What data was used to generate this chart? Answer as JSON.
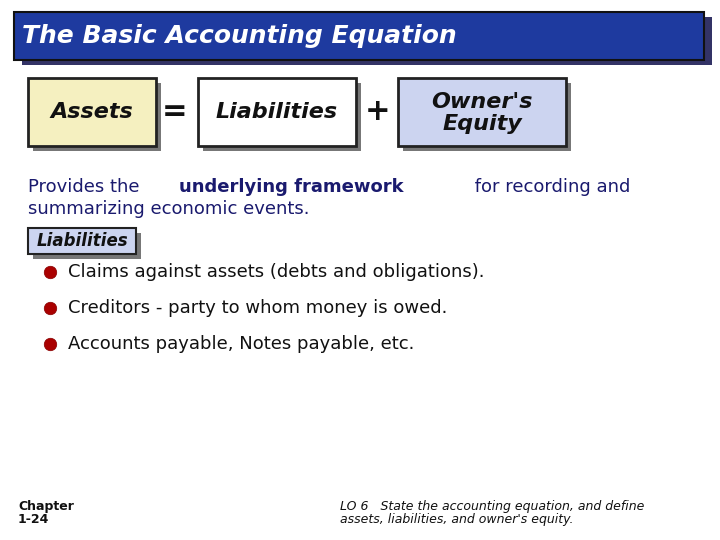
{
  "title": "The Basic Accounting Equation",
  "title_bg": "#1e3a9f",
  "title_color": "#ffffff",
  "bg_color": "#ffffff",
  "assets_label": "Assets",
  "assets_box_bg": "#f5f0c0",
  "assets_box_border": "#222222",
  "liabilities_label": "Liabilities",
  "liabilities_box_bg": "#ffffff",
  "liabilities_box_border": "#222222",
  "equity_label1": "Owner's",
  "equity_label2": "Equity",
  "equity_box_bg": "#ccd4f0",
  "equity_box_border": "#222222",
  "equals_sign": "=",
  "plus_sign": "+",
  "para_normal1": "Provides the ",
  "para_bold": "underlying framework",
  "para_normal2": " for recording and",
  "para_line2": "summarizing economic events.",
  "subheading": "Liabilities",
  "subheading_bg": "#ccd4f0",
  "subheading_border": "#222222",
  "bullet_color": "#aa0000",
  "bullets": [
    "Claims against assets (debts and obligations).",
    "Creditors - party to whom money is owed.",
    "Accounts payable, Notes payable, etc."
  ],
  "footer_left1": "Chapter",
  "footer_left2": "1-24",
  "footer_right": "LO 6   State the accounting equation, and define\nassets, liabilities, and owner's equity.",
  "footer_color": "#111111",
  "shadow_color": "#777777",
  "title_shadow": "#333366"
}
